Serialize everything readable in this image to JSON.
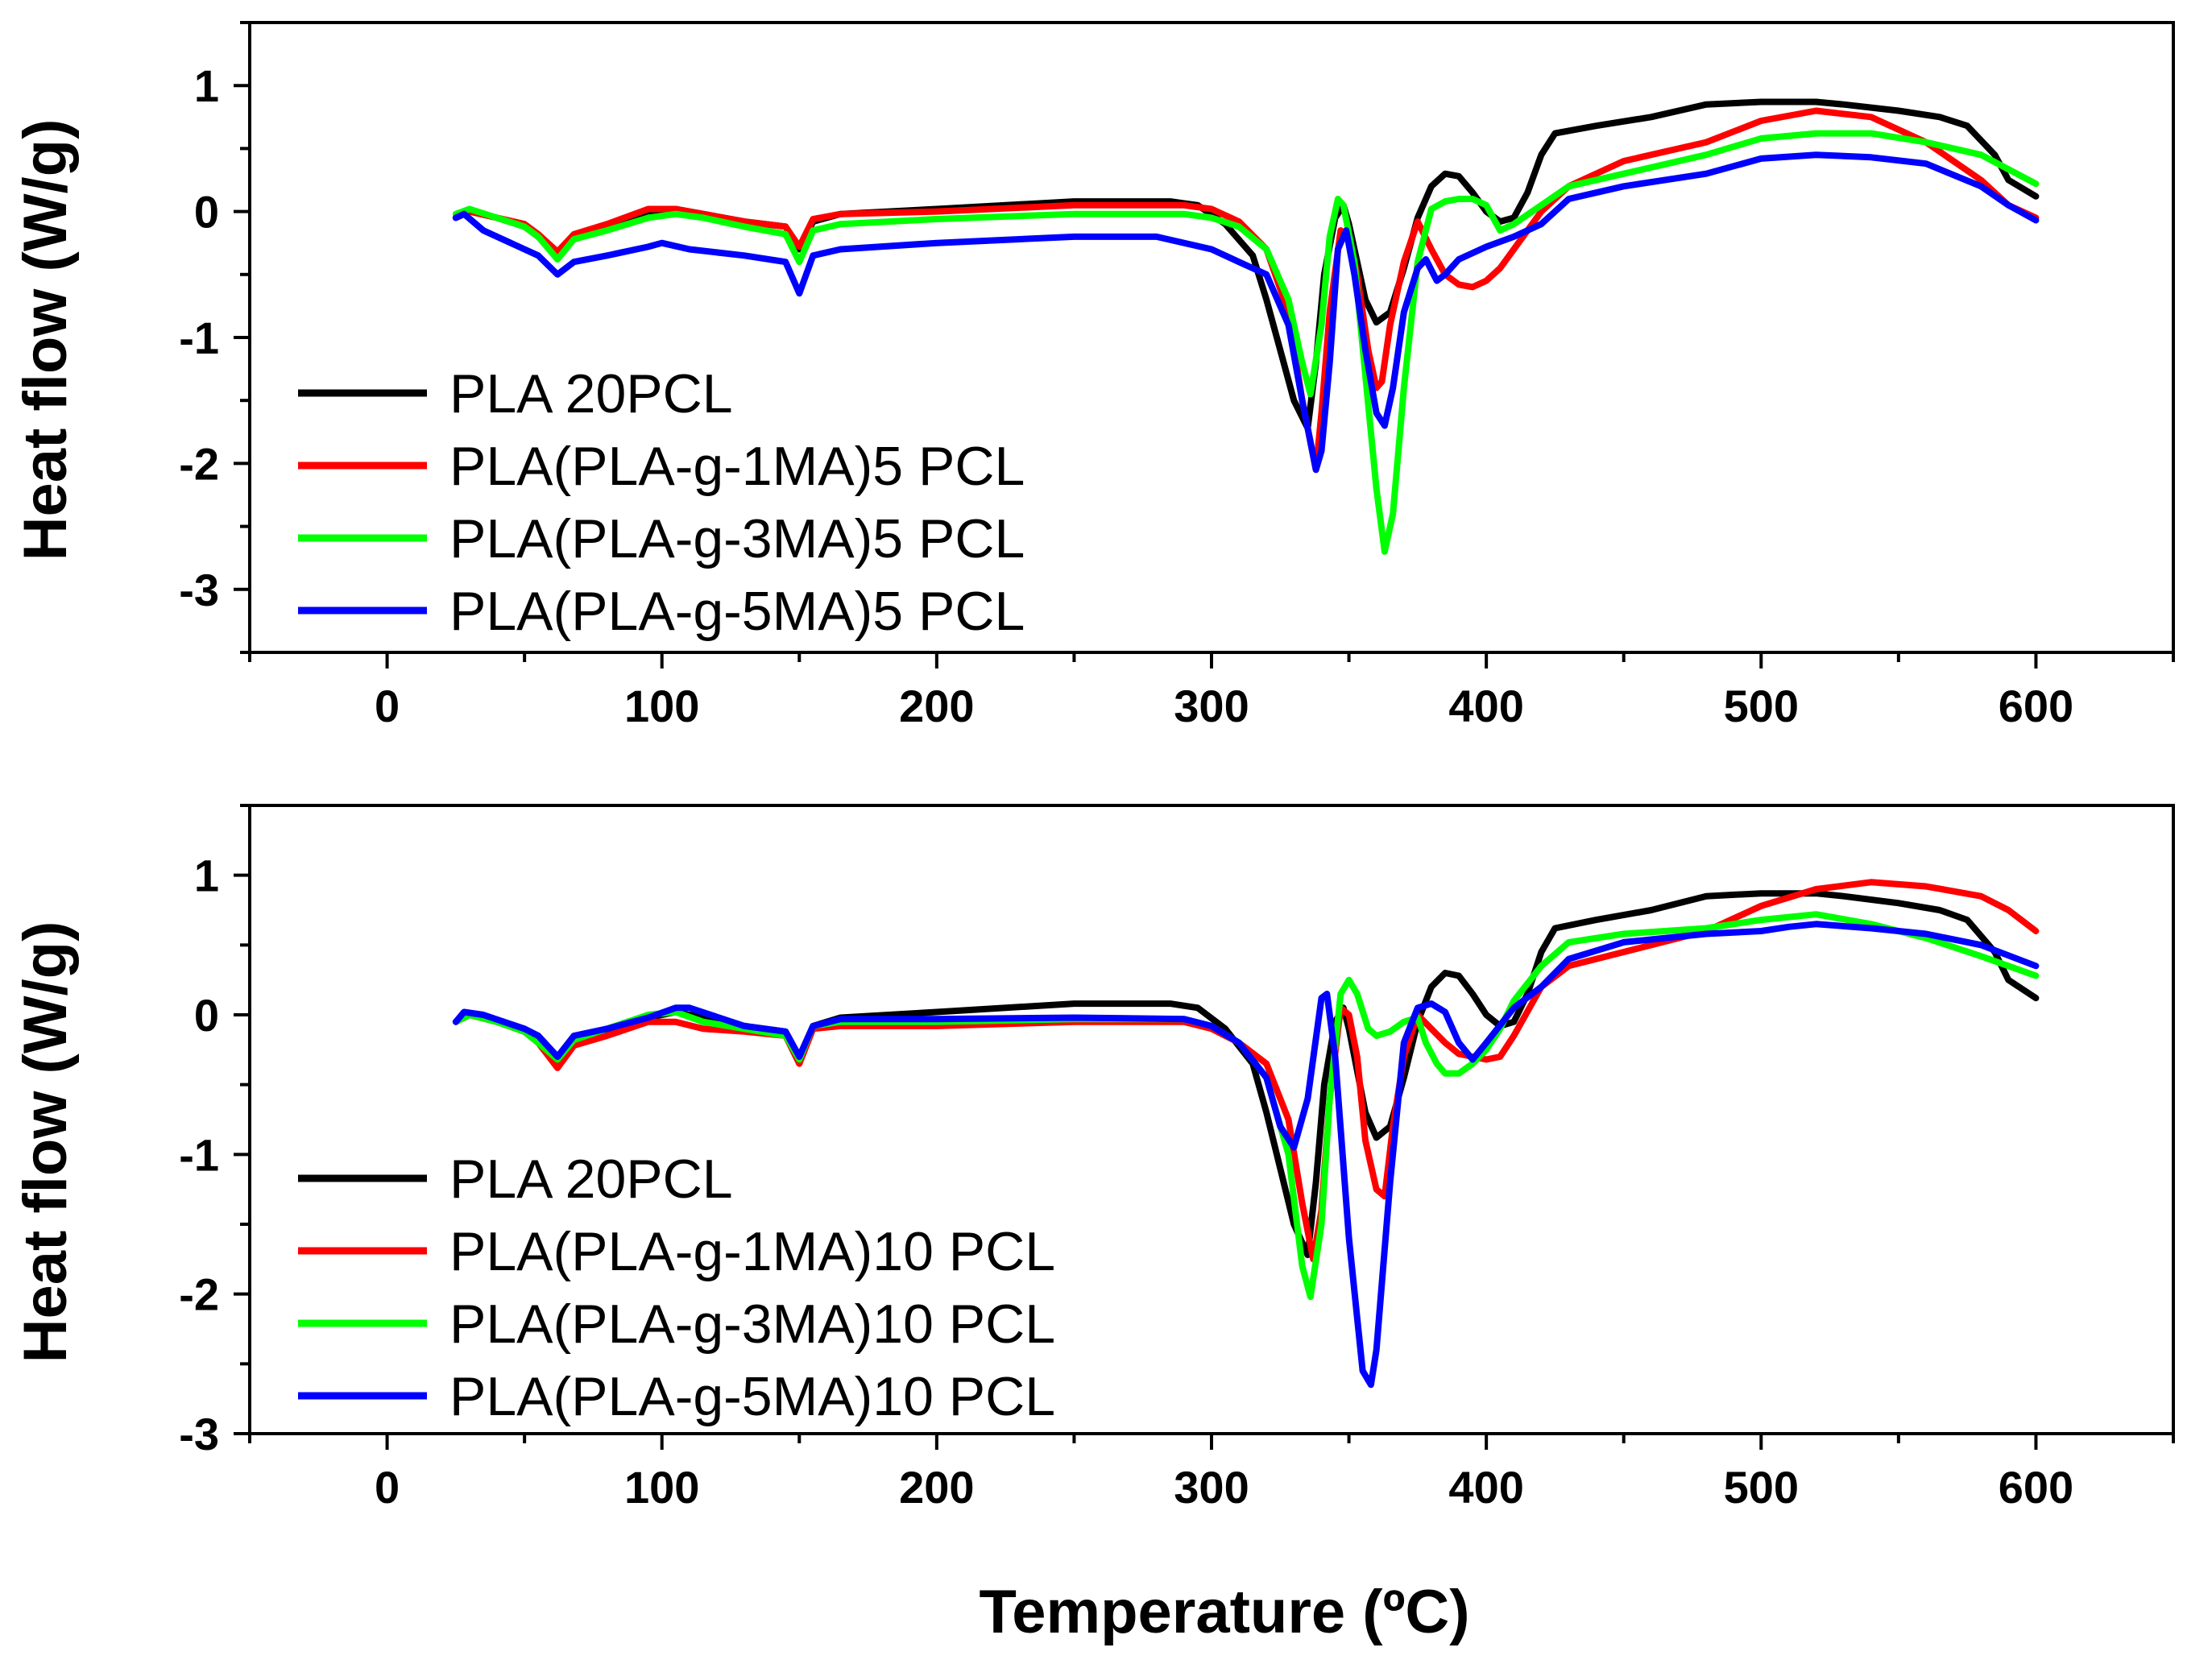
{
  "chart_data": [
    {
      "type": "line",
      "panel": "top",
      "title": "",
      "xlabel": "Temperature (ºC)",
      "ylabel": "Heat flow (W/g)",
      "xlim": [
        -50,
        650
      ],
      "ylim": [
        -3.5,
        1.5
      ],
      "xticks": [
        0,
        100,
        200,
        300,
        400,
        500,
        600
      ],
      "yticks": [
        1,
        0,
        -1,
        -2,
        -3
      ],
      "grid": false,
      "legend_position": "bottom-left",
      "series": [
        {
          "name": "PLA 20PCL",
          "color": "#000000",
          "x": [
            25,
            30,
            40,
            50,
            55,
            62,
            68,
            80,
            95,
            105,
            115,
            130,
            145,
            150,
            155,
            165,
            200,
            250,
            285,
            295,
            305,
            315,
            320,
            325,
            330,
            335,
            338,
            341,
            345,
            348,
            350,
            353,
            356,
            360,
            365,
            370,
            375,
            380,
            385,
            390,
            395,
            400,
            405,
            410,
            415,
            420,
            425,
            440,
            460,
            480,
            500,
            520,
            530,
            550,
            565,
            575,
            585,
            590,
            600
          ],
          "values": [
            -0.05,
            0.0,
            -0.05,
            -0.12,
            -0.2,
            -0.35,
            -0.2,
            -0.12,
            -0.02,
            0.02,
            -0.02,
            -0.08,
            -0.12,
            -0.3,
            -0.08,
            -0.02,
            0.02,
            0.08,
            0.08,
            0.05,
            -0.1,
            -0.35,
            -0.7,
            -1.1,
            -1.5,
            -1.72,
            -1.2,
            -0.5,
            -0.05,
            0.05,
            -0.1,
            -0.4,
            -0.7,
            -0.88,
            -0.8,
            -0.45,
            -0.05,
            0.2,
            0.3,
            0.28,
            0.15,
            0.0,
            -0.08,
            -0.05,
            0.15,
            0.45,
            0.62,
            0.68,
            0.75,
            0.85,
            0.87,
            0.87,
            0.85,
            0.8,
            0.75,
            0.68,
            0.45,
            0.25,
            0.12
          ]
        },
        {
          "name": "PLA(PLA-g-1MA)5 PCL",
          "color": "#ff0000",
          "x": [
            25,
            30,
            40,
            50,
            55,
            62,
            68,
            80,
            95,
            105,
            115,
            130,
            145,
            150,
            155,
            165,
            200,
            250,
            290,
            300,
            310,
            320,
            328,
            333,
            338,
            340,
            343,
            347,
            350,
            353,
            357,
            360,
            362,
            365,
            370,
            375,
            380,
            385,
            390,
            395,
            400,
            405,
            410,
            420,
            430,
            450,
            480,
            500,
            520,
            540,
            560,
            580,
            590,
            600
          ],
          "values": [
            -0.05,
            0.0,
            -0.05,
            -0.1,
            -0.18,
            -0.32,
            -0.18,
            -0.1,
            0.02,
            0.02,
            -0.02,
            -0.08,
            -0.12,
            -0.28,
            -0.06,
            -0.02,
            0.0,
            0.05,
            0.05,
            0.02,
            -0.08,
            -0.3,
            -0.8,
            -1.5,
            -2.05,
            -1.6,
            -0.8,
            -0.15,
            -0.2,
            -0.5,
            -1.1,
            -1.4,
            -1.35,
            -0.9,
            -0.4,
            -0.08,
            -0.3,
            -0.5,
            -0.58,
            -0.6,
            -0.55,
            -0.45,
            -0.3,
            0.0,
            0.2,
            0.4,
            0.55,
            0.72,
            0.8,
            0.75,
            0.55,
            0.25,
            0.05,
            -0.05
          ]
        },
        {
          "name": "PLA(PLA-g-3MA)5 PCL",
          "color": "#00ff00",
          "x": [
            25,
            30,
            40,
            50,
            55,
            62,
            68,
            80,
            95,
            105,
            115,
            130,
            145,
            150,
            155,
            165,
            200,
            250,
            290,
            300,
            310,
            320,
            328,
            333,
            336,
            340,
            343,
            346,
            348,
            352,
            356,
            360,
            363,
            366,
            370,
            375,
            380,
            385,
            390,
            395,
            400,
            405,
            410,
            420,
            430,
            450,
            480,
            500,
            520,
            540,
            560,
            580,
            600
          ],
          "values": [
            -0.02,
            0.02,
            -0.05,
            -0.12,
            -0.2,
            -0.38,
            -0.22,
            -0.15,
            -0.05,
            -0.02,
            -0.05,
            -0.12,
            -0.18,
            -0.4,
            -0.15,
            -0.1,
            -0.06,
            -0.02,
            -0.02,
            -0.05,
            -0.12,
            -0.3,
            -0.7,
            -1.2,
            -1.45,
            -0.9,
            -0.2,
            0.1,
            0.05,
            -0.4,
            -1.3,
            -2.2,
            -2.7,
            -2.4,
            -1.4,
            -0.4,
            0.02,
            0.08,
            0.1,
            0.1,
            0.05,
            -0.15,
            -0.1,
            0.05,
            0.2,
            0.3,
            0.45,
            0.58,
            0.62,
            0.62,
            0.55,
            0.45,
            0.22
          ]
        },
        {
          "name": "PLA(PLA-g-5MA)5 PCL",
          "color": "#0000ff",
          "x": [
            25,
            28,
            35,
            50,
            55,
            62,
            68,
            80,
            95,
            100,
            110,
            130,
            145,
            150,
            155,
            165,
            200,
            250,
            280,
            300,
            310,
            320,
            328,
            333,
            338,
            340,
            343,
            346,
            349,
            352,
            356,
            360,
            363,
            366,
            370,
            375,
            378,
            382,
            385,
            390,
            400,
            410,
            420,
            430,
            450,
            480,
            500,
            520,
            540,
            560,
            580,
            590,
            600
          ],
          "values": [
            -0.05,
            -0.02,
            -0.15,
            -0.3,
            -0.35,
            -0.5,
            -0.4,
            -0.35,
            -0.28,
            -0.25,
            -0.3,
            -0.35,
            -0.4,
            -0.65,
            -0.35,
            -0.3,
            -0.25,
            -0.2,
            -0.2,
            -0.3,
            -0.4,
            -0.5,
            -0.9,
            -1.5,
            -2.05,
            -1.9,
            -1.2,
            -0.3,
            -0.15,
            -0.5,
            -1.1,
            -1.6,
            -1.7,
            -1.4,
            -0.8,
            -0.45,
            -0.38,
            -0.55,
            -0.5,
            -0.38,
            -0.28,
            -0.2,
            -0.1,
            0.1,
            0.2,
            0.3,
            0.42,
            0.45,
            0.43,
            0.38,
            0.2,
            0.05,
            -0.07
          ]
        }
      ]
    },
    {
      "type": "line",
      "panel": "bottom",
      "title": "",
      "xlabel": "Temperature (ºC)",
      "ylabel": "Heat flow (W/g)",
      "xlim": [
        -50,
        650
      ],
      "ylim": [
        -3.0,
        1.5
      ],
      "xticks": [
        0,
        100,
        200,
        300,
        400,
        500,
        600
      ],
      "yticks": [
        1,
        0,
        -1,
        -2,
        -3
      ],
      "grid": false,
      "legend_position": "bottom-left",
      "series": [
        {
          "name": "PLA 20PCL",
          "color": "#000000",
          "x": [
            25,
            30,
            40,
            50,
            55,
            62,
            68,
            80,
            95,
            105,
            115,
            130,
            145,
            150,
            155,
            165,
            200,
            250,
            285,
            295,
            305,
            315,
            320,
            325,
            330,
            335,
            338,
            341,
            345,
            348,
            350,
            353,
            356,
            360,
            365,
            370,
            375,
            380,
            385,
            390,
            395,
            400,
            405,
            410,
            415,
            420,
            425,
            440,
            460,
            480,
            500,
            520,
            530,
            550,
            565,
            575,
            585,
            590,
            600
          ],
          "values": [
            -0.05,
            0.0,
            -0.05,
            -0.12,
            -0.2,
            -0.35,
            -0.2,
            -0.12,
            -0.02,
            0.02,
            -0.02,
            -0.08,
            -0.12,
            -0.3,
            -0.08,
            -0.02,
            0.02,
            0.08,
            0.08,
            0.05,
            -0.1,
            -0.35,
            -0.7,
            -1.1,
            -1.5,
            -1.72,
            -1.2,
            -0.5,
            -0.05,
            0.05,
            -0.1,
            -0.4,
            -0.7,
            -0.88,
            -0.8,
            -0.45,
            -0.05,
            0.2,
            0.3,
            0.28,
            0.15,
            0.0,
            -0.08,
            -0.05,
            0.15,
            0.45,
            0.62,
            0.68,
            0.75,
            0.85,
            0.87,
            0.87,
            0.85,
            0.8,
            0.75,
            0.68,
            0.45,
            0.25,
            0.12
          ]
        },
        {
          "name": "PLA(PLA-g-1MA)10 PCL",
          "color": "#ff0000",
          "x": [
            25,
            30,
            40,
            50,
            55,
            62,
            68,
            80,
            95,
            105,
            115,
            130,
            145,
            150,
            155,
            165,
            200,
            250,
            290,
            300,
            310,
            320,
            328,
            333,
            337,
            340,
            343,
            347,
            350,
            353,
            356,
            360,
            363,
            366,
            370,
            375,
            380,
            385,
            390,
            400,
            405,
            410,
            420,
            430,
            450,
            480,
            500,
            520,
            540,
            560,
            580,
            590,
            600
          ],
          "values": [
            -0.05,
            0.0,
            -0.05,
            -0.12,
            -0.2,
            -0.38,
            -0.22,
            -0.15,
            -0.05,
            -0.05,
            -0.1,
            -0.12,
            -0.15,
            -0.35,
            -0.1,
            -0.08,
            -0.08,
            -0.05,
            -0.05,
            -0.1,
            -0.2,
            -0.35,
            -0.75,
            -1.35,
            -1.75,
            -1.4,
            -0.6,
            0.05,
            0.0,
            -0.3,
            -0.9,
            -1.25,
            -1.3,
            -0.8,
            -0.3,
            0.0,
            -0.1,
            -0.2,
            -0.28,
            -0.32,
            -0.3,
            -0.15,
            0.2,
            0.35,
            0.45,
            0.6,
            0.78,
            0.9,
            0.95,
            0.92,
            0.85,
            0.75,
            0.6
          ]
        },
        {
          "name": "PLA(PLA-g-3MA)10 PCL",
          "color": "#00ff00",
          "x": [
            25,
            30,
            40,
            50,
            55,
            62,
            68,
            80,
            95,
            105,
            115,
            130,
            145,
            150,
            155,
            165,
            200,
            250,
            290,
            300,
            310,
            320,
            328,
            333,
            336,
            340,
            343,
            347,
            350,
            353,
            357,
            360,
            365,
            370,
            375,
            378,
            382,
            385,
            390,
            395,
            400,
            405,
            410,
            420,
            430,
            450,
            480,
            500,
            520,
            540,
            560,
            580,
            600
          ],
          "values": [
            -0.05,
            0.0,
            -0.05,
            -0.12,
            -0.2,
            -0.32,
            -0.18,
            -0.1,
            0.0,
            0.02,
            -0.05,
            -0.1,
            -0.15,
            -0.32,
            -0.08,
            -0.05,
            -0.05,
            -0.03,
            -0.03,
            -0.08,
            -0.2,
            -0.45,
            -1.0,
            -1.8,
            -2.02,
            -1.5,
            -0.6,
            0.15,
            0.25,
            0.15,
            -0.1,
            -0.15,
            -0.12,
            -0.05,
            -0.02,
            -0.2,
            -0.35,
            -0.42,
            -0.42,
            -0.35,
            -0.25,
            -0.1,
            0.1,
            0.35,
            0.52,
            0.58,
            0.62,
            0.68,
            0.72,
            0.65,
            0.55,
            0.42,
            0.28
          ]
        },
        {
          "name": "PLA(PLA-g-5MA)10 PCL",
          "color": "#0000ff",
          "x": [
            25,
            28,
            35,
            50,
            55,
            62,
            68,
            80,
            95,
            105,
            110,
            130,
            145,
            150,
            155,
            165,
            200,
            250,
            290,
            300,
            310,
            320,
            325,
            330,
            335,
            340,
            342,
            345,
            350,
            355,
            358,
            360,
            365,
            370,
            375,
            380,
            385,
            390,
            395,
            400,
            410,
            420,
            430,
            450,
            480,
            500,
            510,
            520,
            540,
            560,
            580,
            600
          ],
          "values": [
            -0.05,
            0.02,
            0.0,
            -0.1,
            -0.15,
            -0.3,
            -0.15,
            -0.1,
            -0.02,
            0.05,
            0.05,
            -0.08,
            -0.12,
            -0.3,
            -0.08,
            -0.03,
            -0.03,
            -0.02,
            -0.03,
            -0.08,
            -0.2,
            -0.45,
            -0.8,
            -0.95,
            -0.6,
            0.12,
            0.15,
            -0.3,
            -1.6,
            -2.55,
            -2.65,
            -2.4,
            -1.2,
            -0.2,
            0.05,
            0.08,
            0.02,
            -0.2,
            -0.32,
            -0.2,
            0.05,
            0.2,
            0.4,
            0.52,
            0.58,
            0.6,
            0.63,
            0.65,
            0.62,
            0.58,
            0.5,
            0.35
          ]
        }
      ]
    }
  ]
}
